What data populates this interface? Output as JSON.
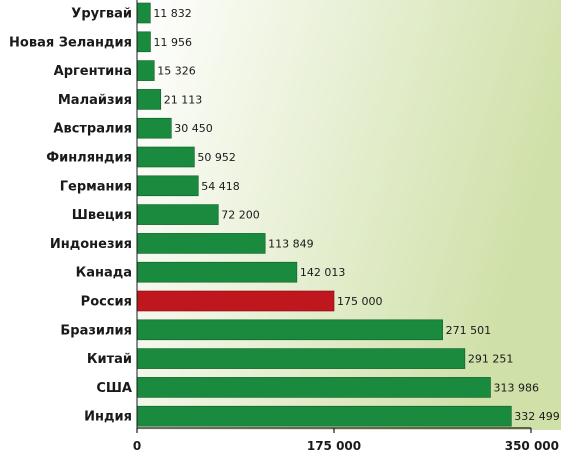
{
  "chart_data": {
    "type": "bar",
    "orientation": "horizontal",
    "categories": [
      "Уругвай",
      "Новая Зеландия",
      "Аргентина",
      "Малайзия",
      "Австралия",
      "Финляндия",
      "Германия",
      "Швеция",
      "Индонезия",
      "Канада",
      "Россия",
      "Бразилия",
      "Китай",
      "США",
      "Индия"
    ],
    "values": [
      11832,
      11956,
      15326,
      21113,
      30450,
      50952,
      54418,
      72200,
      113849,
      142013,
      175000,
      271501,
      291251,
      313986,
      332499
    ],
    "value_labels": [
      "11 832",
      "11 956",
      "15 326",
      "21 113",
      "30 450",
      "50 952",
      "54 418",
      "72 200",
      "113 849",
      "142 013",
      "175 000",
      "271 501",
      "291 251",
      "313 986",
      "332 499"
    ],
    "highlight_category": "Россия",
    "xlim": [
      0,
      350000
    ],
    "xticks": [
      0,
      175000,
      350000
    ],
    "xtick_labels": [
      "0",
      "175 000",
      "350 000"
    ],
    "title": "",
    "xlabel": "",
    "ylabel": "",
    "grid": false,
    "colors": {
      "bar": "#1a8a3e",
      "bar_edge": "#0d5a26",
      "highlight": "#c0161e",
      "background_left": "#ffffff",
      "background_right": "#cfe0a8",
      "axis": "#1a1a1a"
    }
  }
}
